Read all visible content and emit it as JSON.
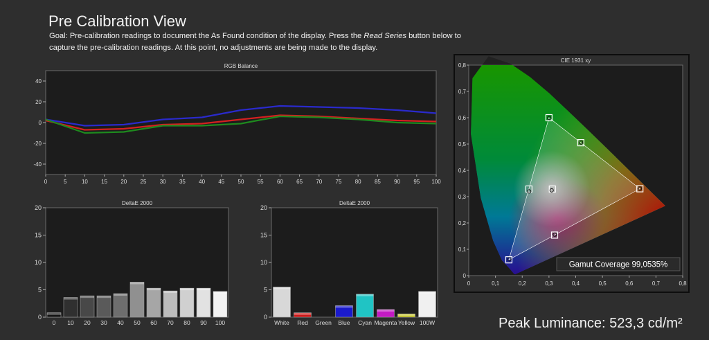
{
  "header": {
    "title": "Pre Calibration View",
    "goal_part1": "Goal: Pre-calibration readings to document the As Found condition of the display. Press the ",
    "goal_emphasis": "Read Series",
    "goal_part2": " button below to capture the pre-calibration readings. At this point, no adjustments are being made to the display."
  },
  "footer": {
    "peak_luminance": "Peak Luminance: 523,3 cd/m²"
  },
  "colors": {
    "background": "#2e2e2e",
    "plot_bg": "#1c1c1c",
    "red": "#d42020",
    "green": "#1e8a1e",
    "blue": "#2a2acc"
  },
  "chart_data": [
    {
      "type": "line",
      "title": "RGB Balance",
      "x": [
        0,
        10,
        20,
        30,
        40,
        50,
        60,
        70,
        80,
        90,
        100
      ],
      "xticks": [
        "0",
        "5",
        "10",
        "15",
        "20",
        "25",
        "30",
        "35",
        "40",
        "45",
        "50",
        "55",
        "60",
        "65",
        "70",
        "75",
        "80",
        "85",
        "90",
        "95",
        "100"
      ],
      "yticks": [
        "40",
        "20",
        "0",
        "-20",
        "-40"
      ],
      "xlim": [
        0,
        100
      ],
      "ylim": [
        -50,
        50
      ],
      "series": [
        {
          "color": "#2a2acc",
          "values": [
            3,
            -3,
            -2,
            3,
            5,
            12,
            16,
            15,
            14,
            12,
            9
          ]
        },
        {
          "color": "#d42020",
          "values": [
            2,
            -7,
            -6,
            -2,
            -1,
            3,
            7,
            6,
            4,
            2,
            1
          ]
        },
        {
          "color": "#1e8a1e",
          "values": [
            3,
            -10,
            -9,
            -3,
            -3,
            -1,
            6,
            5,
            3,
            0,
            -1
          ]
        }
      ],
      "grid": false
    },
    {
      "type": "bar",
      "title": "DeltaE 2000",
      "categories": [
        "0",
        "10",
        "20",
        "30",
        "40",
        "50",
        "60",
        "70",
        "80",
        "90",
        "100"
      ],
      "values": [
        0.8,
        3.6,
        3.9,
        3.9,
        4.3,
        6.4,
        5.3,
        4.8,
        5.3,
        5.3,
        4.7
      ],
      "yticks": [
        "20",
        "15",
        "10",
        "5",
        "0"
      ],
      "ylim": [
        0,
        20
      ],
      "bar_colors": [
        "#151515",
        "#303030",
        "#484848",
        "#5a5a5a",
        "#6e6e6e",
        "#909090",
        "#a6a6a6",
        "#bcbcbc",
        "#d0d0d0",
        "#e2e2e2",
        "#f2f2f2"
      ]
    },
    {
      "type": "bar",
      "title": "DeltaE 2000",
      "categories": [
        "White",
        "Red",
        "Green",
        "Blue",
        "Cyan",
        "Magenta",
        "Yellow",
        "100W"
      ],
      "values": [
        5.5,
        0.8,
        0,
        2.1,
        4.2,
        1.4,
        0.6,
        4.7
      ],
      "yticks": [
        "20",
        "15",
        "10",
        "5",
        "0"
      ],
      "ylim": [
        0,
        20
      ],
      "bar_colors": [
        "#d8d8d8",
        "#cc1a1a",
        "#1aa01a",
        "#1a1acc",
        "#20c4c4",
        "#c41ac4",
        "#c4c41a",
        "#f0f0f0"
      ]
    },
    {
      "type": "scatter",
      "title": "CIE 1931 xy",
      "xticks": [
        "0",
        "0,1",
        "0,2",
        "0,3",
        "0,4",
        "0,5",
        "0,6",
        "0,7",
        "0,8"
      ],
      "yticks": [
        "0,8",
        "0,7",
        "0,6",
        "0,5",
        "0,4",
        "0,3",
        "0,2",
        "0,1",
        "0"
      ],
      "xlim": [
        0,
        0.8
      ],
      "ylim": [
        0,
        0.8
      ],
      "gamut_coverage": "Gamut Coverage 99,0535%",
      "target_gamut": [
        [
          0.64,
          0.33
        ],
        [
          0.3,
          0.6
        ],
        [
          0.15,
          0.06
        ]
      ],
      "targets": [
        [
          0.64,
          0.33
        ],
        [
          0.3,
          0.6
        ],
        [
          0.15,
          0.06
        ],
        [
          0.225,
          0.329
        ],
        [
          0.419,
          0.505
        ],
        [
          0.321,
          0.154
        ],
        [
          0.3127,
          0.329
        ]
      ],
      "measured": [
        [
          0.64,
          0.331
        ],
        [
          0.301,
          0.599
        ],
        [
          0.152,
          0.062
        ],
        [
          0.226,
          0.32
        ],
        [
          0.42,
          0.506
        ],
        [
          0.322,
          0.156
        ],
        [
          0.31,
          0.324
        ]
      ]
    }
  ]
}
